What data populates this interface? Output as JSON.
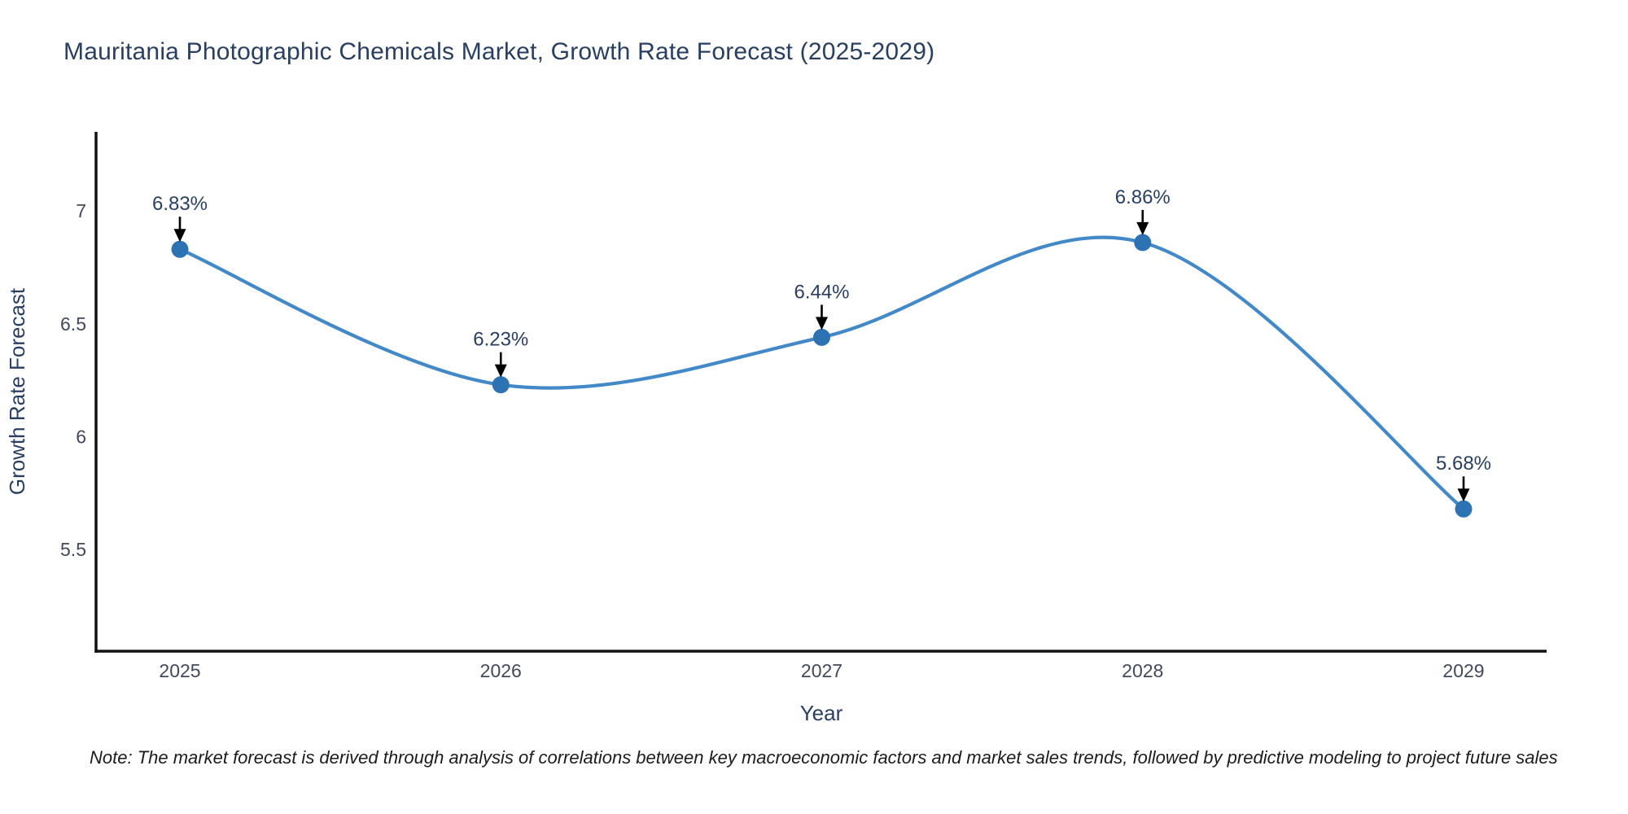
{
  "page": {
    "background": "#ffffff"
  },
  "chart_data": {
    "type": "line",
    "title": "Mauritania Photographic Chemicals Market, Growth Rate Forecast (2025-2029)",
    "categories": [
      2025,
      2026,
      2027,
      2028,
      2029
    ],
    "xtick_labels": [
      "2025",
      "2026",
      "2027",
      "2028",
      "2029"
    ],
    "values": [
      6.83,
      6.23,
      6.44,
      6.86,
      5.68
    ],
    "point_labels": [
      "6.83%",
      "6.23%",
      "6.44%",
      "6.86%",
      "5.68%"
    ],
    "xlabel": "Year",
    "ylabel": "Growth Rate Forecast",
    "yticks": [
      5.5,
      6,
      6.5,
      7
    ],
    "ytick_labels": [
      "5.5",
      "6",
      "6.5",
      "7"
    ],
    "ylim": [
      5.05,
      7.35
    ],
    "grid": false,
    "legend": false,
    "line_shape": "spline",
    "colors": {
      "line": "#4389c8",
      "marker": "#2d73b4",
      "axis": "#111111",
      "tick_label": "#42495b",
      "title": "#2a3f5f",
      "axis_title": "#2a3f5f",
      "annotation_text": "#2a3f5f",
      "arrow": "#000000"
    }
  },
  "note": {
    "text": "Note: The market forecast is derived through analysis of correlations between key macroeconomic factors and market sales trends, followed by predictive modeling to project future sales"
  }
}
